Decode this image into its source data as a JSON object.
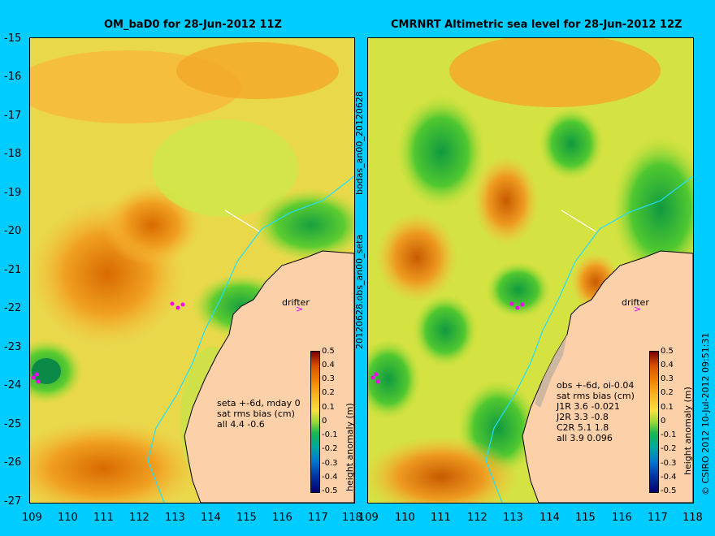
{
  "left_panel": {
    "title": "OM_baD0 for 28-Jun-2012 11Z",
    "drifter_label": "drifter",
    "stats": [
      "seta +-6d, mday 0",
      "sat rms bias (cm)",
      "all 4.4 -0.6"
    ]
  },
  "right_panel": {
    "title": "CMRNRT Altimetric sea level  for 28-Jun-2012 12Z",
    "drifter_label": "drifter",
    "stats": [
      "obs +-6d, oi-0.04",
      "sat rms bias (cm)",
      "J1R   3.6 -0.021",
      "J2R   3.3 -0.8",
      "C2R   5.1 1.8",
      "all 3.9 0.096"
    ]
  },
  "side_text": {
    "top": "bodas_an00_20120628",
    "bottom": "20120628.obs_an00_seta"
  },
  "colorbar": {
    "label": "height anomaly (m)",
    "ticks": [
      "0.5",
      "0.4",
      "0.3",
      "0.2",
      "0.1",
      "0",
      "-0.1",
      "-0.2",
      "-0.3",
      "-0.4",
      "-0.5"
    ]
  },
  "credit": "© CSIRO 2012   10-Jul-2012 09:51:31",
  "axes": {
    "lat_ticks": [
      "-15",
      "-16",
      "-17",
      "-18",
      "-19",
      "-20",
      "-21",
      "-22",
      "-23",
      "-24",
      "-25",
      "-26",
      "-27"
    ],
    "lon_ticks": [
      "109",
      "110",
      "111",
      "112",
      "113",
      "114",
      "115",
      "116",
      "117",
      "118"
    ]
  },
  "colors": {
    "background": "#00ccff",
    "land": "#fcd0a8",
    "positive_high": "#e07a00",
    "positive_mid": "#fcbc30",
    "zero": "#c6e838",
    "negative": "#22bb44",
    "drifter": "#ff00ff",
    "isobath": "#22ddff"
  }
}
